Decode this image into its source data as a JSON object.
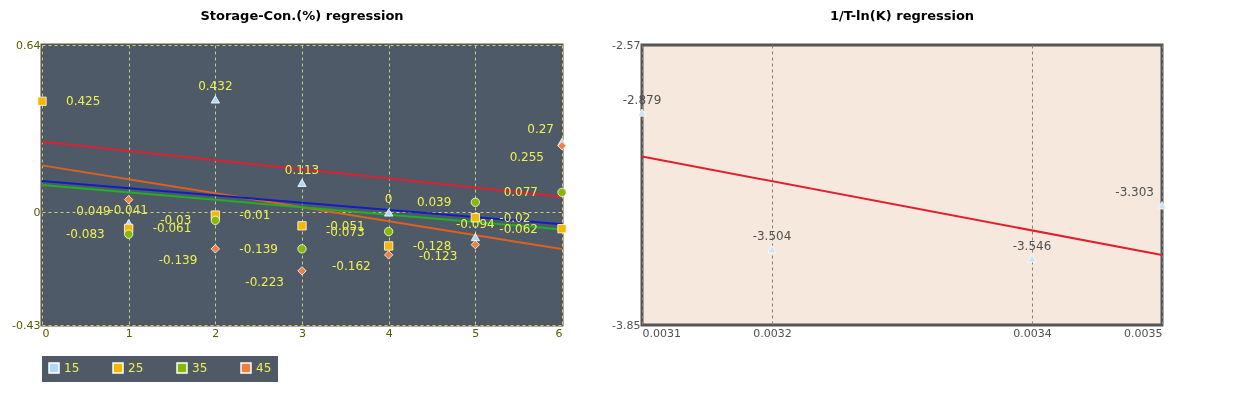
{
  "chart_data": [
    {
      "type": "scatter",
      "title": "Storage-Con.(%) regression",
      "x": [
        0,
        1,
        2,
        3,
        4,
        5,
        6
      ],
      "xlim": [
        0,
        6
      ],
      "xticks": [
        0,
        1,
        2,
        3,
        4,
        5,
        6
      ],
      "ylim": [
        -0.43,
        0.64
      ],
      "yticks": [
        -0.43,
        0,
        0.64
      ],
      "grid": true,
      "legend": "bottom",
      "series": [
        {
          "name": "15",
          "color": "#b0d8f8",
          "marker": "triangle",
          "values": [
            null,
            -0.041,
            0.432,
            0.113,
            0,
            -0.094,
            0.27
          ],
          "value_labels": [
            null,
            "-0.041",
            "0.432",
            "0.113",
            "0",
            "-0.094",
            "0.27"
          ]
        },
        {
          "name": "25",
          "color": "#f5b800",
          "marker": "square",
          "values": [
            0.425,
            -0.061,
            -0.01,
            -0.051,
            -0.128,
            -0.02,
            -0.062
          ],
          "value_labels": [
            "0.425",
            "-0.061",
            "-0.01",
            "-0.051",
            "-0.128",
            "-0.02",
            "-0.062"
          ]
        },
        {
          "name": "35",
          "color": "#88b800",
          "marker": "circle",
          "values": [
            null,
            -0.083,
            -0.03,
            -0.139,
            -0.073,
            0.039,
            0.077
          ],
          "value_labels": [
            null,
            "-0.083",
            "-0.03",
            "-0.139",
            "-0.073",
            "0.039",
            "0.077"
          ]
        },
        {
          "name": "45",
          "color": "#f08040",
          "marker": "diamond",
          "values": [
            null,
            0.049,
            -0.139,
            -0.223,
            -0.162,
            -0.123,
            0.255
          ],
          "value_labels": [
            null,
            "0.049",
            "-0.139",
            "-0.223",
            "-0.162",
            "-0.123",
            "0.255"
          ]
        },
        {
          "type": "line",
          "color": "#e02030",
          "x": [
            0,
            6
          ],
          "values": [
            0.27,
            0.06
          ]
        },
        {
          "type": "line",
          "color": "#e06020",
          "x": [
            0,
            6
          ],
          "values": [
            0.18,
            -0.14
          ]
        },
        {
          "type": "line",
          "color": "#1020c0",
          "x": [
            0,
            6
          ],
          "values": [
            0.12,
            -0.045
          ]
        },
        {
          "type": "line",
          "color": "#20b020",
          "x": [
            0,
            6
          ],
          "values": [
            0.105,
            -0.065
          ]
        }
      ]
    },
    {
      "type": "scatter",
      "title": "1/T-ln(K) regression",
      "x": [
        0.0031,
        0.0032,
        0.0034,
        0.0035
      ],
      "xlim": [
        0.0031,
        0.0035
      ],
      "xticks": [
        0.0031,
        0.0032,
        0.0034,
        0.0035
      ],
      "ylim": [
        -3.85,
        -2.57
      ],
      "yticks": [
        -3.85,
        -2.57
      ],
      "grid": "x",
      "series": [
        {
          "color": "#c8e4f8",
          "marker": "triangle",
          "values": [
            -2.879,
            -3.504,
            -3.546,
            -3.303
          ],
          "value_labels": [
            "-2.879",
            "-3.504",
            "-3.546",
            "-3.303"
          ]
        },
        {
          "type": "line",
          "color": "#e02030",
          "x": [
            0.0031,
            0.0035
          ],
          "values": [
            -3.08,
            -3.53
          ]
        }
      ]
    }
  ]
}
